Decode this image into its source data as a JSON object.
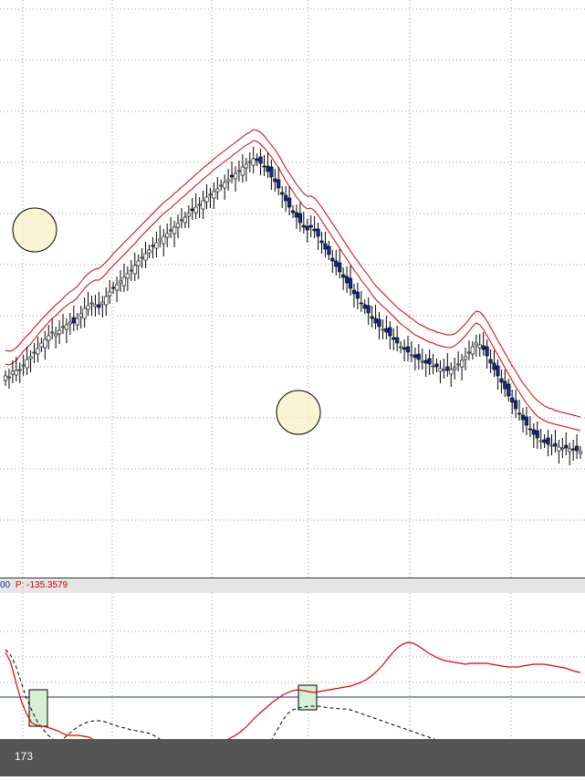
{
  "indicator": {
    "prefix": "00",
    "label": "P: -135.3579"
  },
  "footer": {
    "label": "173"
  },
  "colors": {
    "candle_body": "#1a2a8a",
    "moving_average": "#cc0000",
    "oscillator": "#e00000",
    "signal": "#000000",
    "baseline": "#1a2a8a",
    "grid": "#999999",
    "circle_fill": "#f8efc2",
    "box_fill": "#d6f0d6"
  },
  "chart_data": [
    {
      "type": "candlestick",
      "title": "",
      "xlabel": "",
      "ylabel": "",
      "grid": true,
      "y_gridlines": 11,
      "x_gridlines": 6,
      "close": [
        222,
        221,
        227,
        228,
        229,
        234,
        240,
        243,
        248,
        252,
        258,
        262,
        266,
        270,
        268,
        272,
        276,
        278,
        281,
        280,
        285,
        290,
        296,
        299,
        302,
        300,
        297,
        303,
        309,
        314,
        318,
        322,
        326,
        330,
        334,
        338,
        343,
        348,
        352,
        356,
        360,
        364,
        368,
        372,
        375,
        378,
        382,
        385,
        389,
        393,
        396,
        400,
        403,
        407,
        410,
        414,
        418,
        421,
        424,
        427,
        431,
        434,
        437,
        440,
        444,
        447,
        451,
        454,
        457,
        460,
        458,
        455,
        451,
        446,
        440,
        435,
        428,
        421,
        414,
        407,
        401,
        396,
        390,
        385,
        382,
        385,
        381,
        375,
        368,
        361,
        355,
        348,
        342,
        336,
        330,
        324,
        318,
        312,
        307,
        301,
        296,
        291,
        285,
        280,
        276,
        273,
        270,
        266,
        262,
        258,
        254,
        251,
        248,
        245,
        242,
        240,
        238,
        236,
        235,
        233,
        232,
        230,
        229,
        228,
        229,
        231,
        235,
        239,
        243,
        248,
        254,
        258,
        256,
        251,
        244,
        236,
        229,
        222,
        215,
        208,
        200,
        193,
        186,
        180,
        174,
        168,
        163,
        158,
        154,
        151,
        149,
        147,
        146,
        145,
        144,
        143,
        143,
        142,
        141,
        140,
        139
      ],
      "ma_fast": [
        235,
        234,
        236,
        239,
        244,
        249,
        253,
        257,
        262,
        267,
        272,
        276,
        281,
        285,
        288,
        292,
        296,
        299,
        302,
        304,
        308,
        313,
        318,
        322,
        325,
        327,
        327,
        330,
        334,
        339,
        343,
        347,
        351,
        355,
        359,
        363,
        367,
        372,
        376,
        380,
        384,
        388,
        392,
        396,
        400,
        403,
        406,
        410,
        413,
        417,
        420,
        424,
        427,
        431,
        434,
        438,
        441,
        444,
        448,
        451,
        454,
        457,
        460,
        463,
        466,
        469,
        472,
        475,
        477,
        480,
        479,
        476,
        472,
        467,
        462,
        456,
        450,
        443,
        436,
        430,
        424,
        418,
        413,
        408,
        405,
        406,
        403,
        398,
        392,
        386,
        380,
        374,
        368,
        362,
        356,
        350,
        344,
        338,
        333,
        327,
        322,
        317,
        311,
        306,
        302,
        298,
        295,
        291,
        287,
        283,
        279,
        276,
        273,
        270,
        267,
        265,
        263,
        261,
        259,
        258,
        256,
        255,
        254,
        253,
        253,
        255,
        258,
        262,
        266,
        271,
        276,
        280,
        278,
        273,
        266,
        259,
        252,
        245,
        238,
        231,
        224,
        217,
        210,
        204,
        198,
        192,
        187,
        182,
        178,
        175,
        173,
        171,
        170,
        169,
        168,
        167,
        166,
        165,
        164,
        163,
        162
      ],
      "ma_slow": [
        250,
        249,
        250,
        253,
        257,
        262,
        266,
        270,
        275,
        279,
        284,
        288,
        292,
        296,
        300,
        303,
        307,
        311,
        314,
        317,
        320,
        325,
        330,
        334,
        337,
        339,
        340,
        343,
        347,
        351,
        356,
        360,
        364,
        368,
        372,
        376,
        380,
        384,
        388,
        392,
        396,
        400,
        404,
        408,
        412,
        415,
        418,
        422,
        425,
        429,
        432,
        436,
        439,
        443,
        446,
        450,
        453,
        456,
        460,
        463,
        466,
        469,
        472,
        475,
        478,
        481,
        484,
        487,
        489,
        492,
        491,
        489,
        485,
        480,
        475,
        470,
        464,
        457,
        450,
        444,
        438,
        432,
        427,
        422,
        419,
        419,
        417,
        412,
        407,
        401,
        395,
        389,
        383,
        377,
        371,
        365,
        359,
        353,
        348,
        342,
        337,
        332,
        326,
        321,
        317,
        313,
        309,
        305,
        301,
        297,
        294,
        291,
        288,
        285,
        282,
        279,
        277,
        275,
        273,
        272,
        270,
        269,
        268,
        267,
        267,
        268,
        271,
        275,
        279,
        284,
        289,
        293,
        292,
        288,
        282,
        275,
        268,
        261,
        254,
        247,
        240,
        233,
        227,
        220,
        214,
        209,
        204,
        199,
        195,
        192,
        189,
        187,
        186,
        184,
        183,
        182,
        181,
        180,
        179,
        178,
        177
      ],
      "ylim": [
        100,
        580
      ]
    },
    {
      "type": "line",
      "title": "",
      "series": [
        {
          "values": [
            712,
            718,
            730,
            748,
            765,
            778,
            790,
            798,
            805,
            810,
            812,
            810,
            805,
            800,
            796,
            793,
            791,
            790,
            790,
            791,
            793,
            795,
            797,
            798,
            800,
            801,
            802,
            803,
            805,
            808,
            812,
            815,
            818,
            820,
            822,
            823,
            824,
            826,
            828,
            829,
            830,
            832,
            834,
            836,
            838,
            839,
            838,
            836,
            832,
            826,
            818,
            810,
            800,
            790,
            782,
            778,
            776,
            775,
            774,
            774,
            774,
            775,
            776,
            776,
            777,
            777,
            778,
            780,
            782,
            784,
            786,
            788,
            790,
            792,
            794,
            796,
            798,
            800,
            802,
            804,
            806,
            808,
            810,
            812,
            814,
            815,
            816,
            817,
            818,
            819,
            820,
            821,
            822,
            823,
            824,
            825,
            826,
            827,
            828,
            829,
            830,
            831,
            832,
            833,
            834,
            835,
            836,
            837,
            838,
            839,
            840
          ]
        },
        {
          "values": [
            715,
            726,
            748,
            768,
            782,
            792,
            795,
            796,
            797,
            799,
            801,
            804,
            806,
            806,
            806,
            807,
            808,
            811,
            813,
            815,
            815,
            815,
            816,
            818,
            821,
            823,
            824,
            826,
            828,
            830,
            830,
            829,
            826,
            822,
            819,
            818,
            819,
            820,
            820,
            819,
            818,
            815,
            812,
            809,
            806,
            802,
            797,
            791,
            785,
            780,
            775,
            770,
            766,
            762,
            759,
            757,
            756,
            757,
            758,
            759,
            758,
            757,
            756,
            755,
            754,
            753,
            752,
            750,
            748,
            745,
            741,
            736,
            730,
            723,
            716,
            710,
            706,
            704,
            705,
            708,
            712,
            716,
            719,
            722,
            724,
            725,
            726,
            727,
            728,
            727,
            727,
            727,
            727,
            728,
            729,
            730,
            731,
            731,
            731,
            730,
            729,
            728,
            728,
            728,
            729,
            730,
            731,
            732,
            734,
            736,
            737
          ]
        }
      ],
      "baseline": 764,
      "ylim": [
        680,
        860
      ]
    }
  ]
}
